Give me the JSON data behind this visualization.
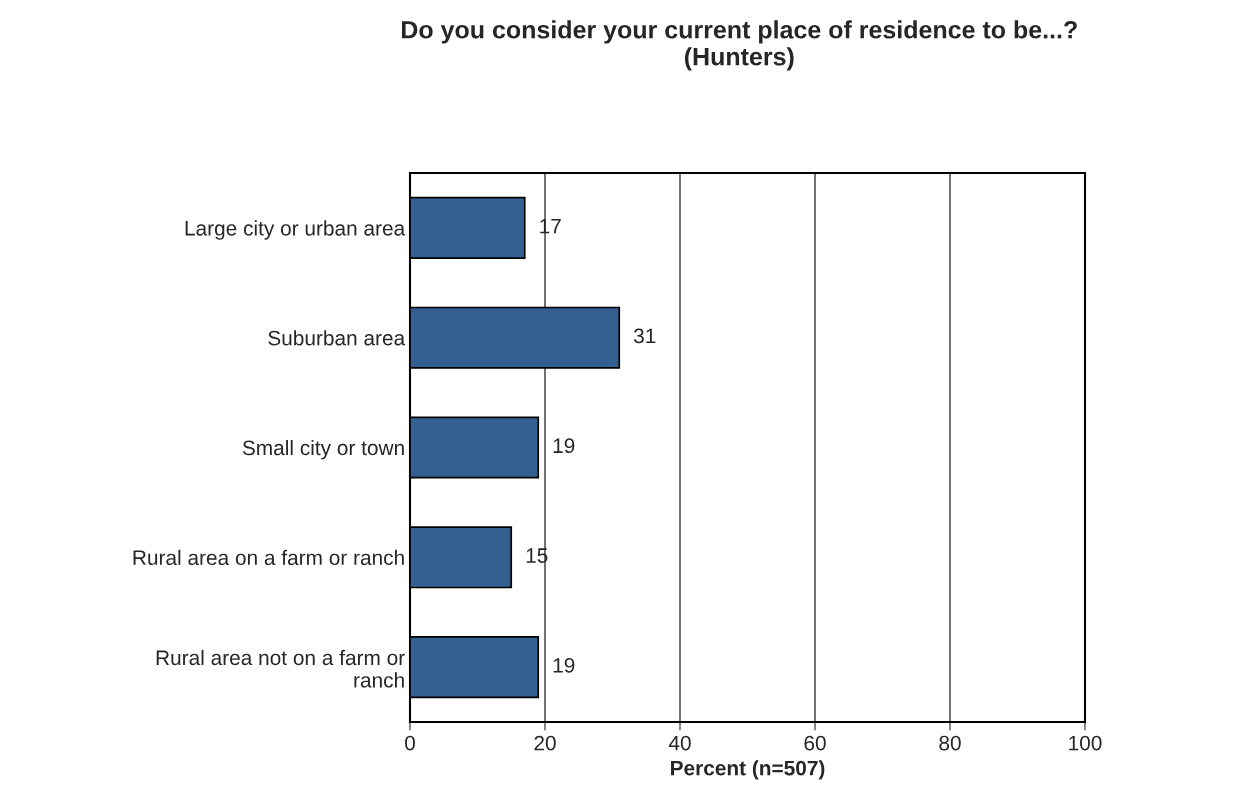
{
  "chart_data": {
    "type": "bar",
    "orientation": "horizontal",
    "title": "Do you consider your current place of residence to be...?\n(Hunters)",
    "xlabel": "Percent (n=507)",
    "categories": [
      "Large city or urban area",
      "Suburban area",
      "Small city or town",
      "Rural area on a farm or ranch",
      "Rural area not on a farm or\nranch"
    ],
    "values": [
      17,
      31,
      19,
      15,
      19
    ],
    "color": "#345f91",
    "xlim": [
      0,
      100
    ],
    "xticks": [
      0,
      20,
      40,
      60,
      80,
      100
    ],
    "grid": "x",
    "data_labels": true,
    "legend": false
  }
}
